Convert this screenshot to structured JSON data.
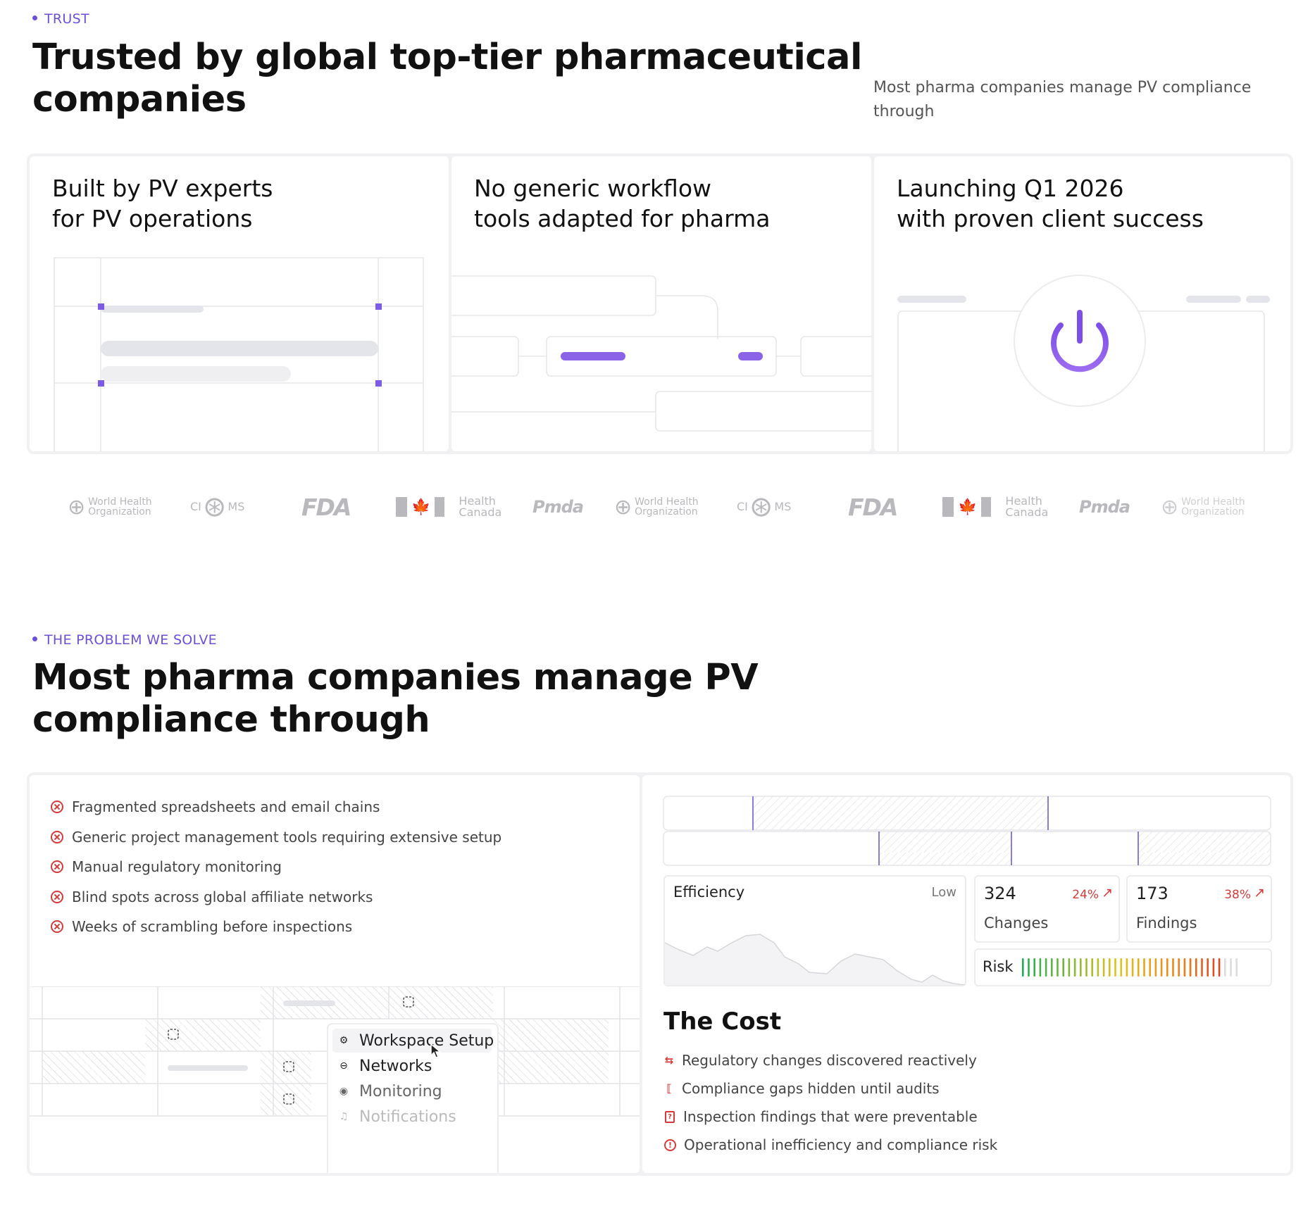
{
  "trust": {
    "eyebrow": "TRUST",
    "title_line1": "Trusted by global top-tier pharmaceutical",
    "title_line2": "companies",
    "intro_line1": "Most pharma companies manage PV compliance",
    "intro_line2": "through",
    "cards": [
      {
        "title": "Built by PV experts\nfor PV operations"
      },
      {
        "title": "No generic workflow\ntools adapted for pharma"
      },
      {
        "title": "Launching Q1 2026\nwith proven client success"
      }
    ]
  },
  "logos": [
    {
      "name": "who-logo",
      "line1": "World Health",
      "line2": "Organization"
    },
    {
      "name": "cioms-logo",
      "left": "CI",
      "right": "MS"
    },
    {
      "name": "fda-logo",
      "text": "FDA"
    },
    {
      "name": "health-canada-logo",
      "line1": "Health",
      "line2": "Canada"
    },
    {
      "name": "pmda-logo",
      "text": "Pmda"
    },
    {
      "name": "who-logo",
      "line1": "World Health",
      "line2": "Organization"
    },
    {
      "name": "cioms-logo",
      "left": "CI",
      "right": "MS"
    },
    {
      "name": "fda-logo",
      "text": "FDA"
    },
    {
      "name": "health-canada-logo",
      "line1": "Health",
      "line2": "Canada"
    },
    {
      "name": "pmda-logo",
      "text": "Pmda"
    },
    {
      "name": "who-logo",
      "line1": "World Health",
      "line2": "Organization"
    }
  ],
  "problem": {
    "eyebrow": "THE PROBLEM WE SOLVE",
    "title_line1": "Most pharma companies manage PV",
    "title_line2": "compliance through",
    "problems": [
      "Fragmented spreadsheets and email chains",
      "Generic project management tools requiring extensive setup",
      "Manual regulatory monitoring",
      "Blind spots across global affiliate networks",
      "Weeks of scrambling before inspections"
    ],
    "menu": [
      {
        "icon": "gear-icon",
        "glyph": "⚙",
        "label": "Workspace Setup"
      },
      {
        "icon": "link-icon",
        "glyph": "⊖",
        "label": "Networks"
      },
      {
        "icon": "eye-icon",
        "glyph": "◉",
        "label": "Monitoring"
      },
      {
        "icon": "bell-icon",
        "glyph": "♫",
        "label": "Notifications"
      }
    ]
  },
  "metrics": {
    "efficiency": {
      "label": "Efficiency",
      "level": "Low"
    },
    "changes": {
      "value": "324",
      "delta": "24%",
      "label": "Changes"
    },
    "findings": {
      "value": "173",
      "delta": "38%",
      "label": "Findings"
    },
    "risk": {
      "label": "Risk",
      "level_fraction": 0.92
    },
    "colors": {
      "up": "#d63a3a",
      "accent": "#6d4fd8"
    }
  },
  "cost": {
    "title": "The Cost",
    "items": [
      {
        "icon": "swap-icon",
        "glyph": "⇆",
        "text": "Regulatory changes discovered reactively"
      },
      {
        "icon": "brackets-icon",
        "glyph": "⟦",
        "text": "Compliance gaps hidden until audits"
      },
      {
        "icon": "document-alert-icon",
        "glyph": "?",
        "text": "Inspection findings that were preventable"
      },
      {
        "icon": "alert-circle-icon",
        "glyph": "!",
        "text": "Operational inefficiency and compliance risk"
      }
    ]
  }
}
